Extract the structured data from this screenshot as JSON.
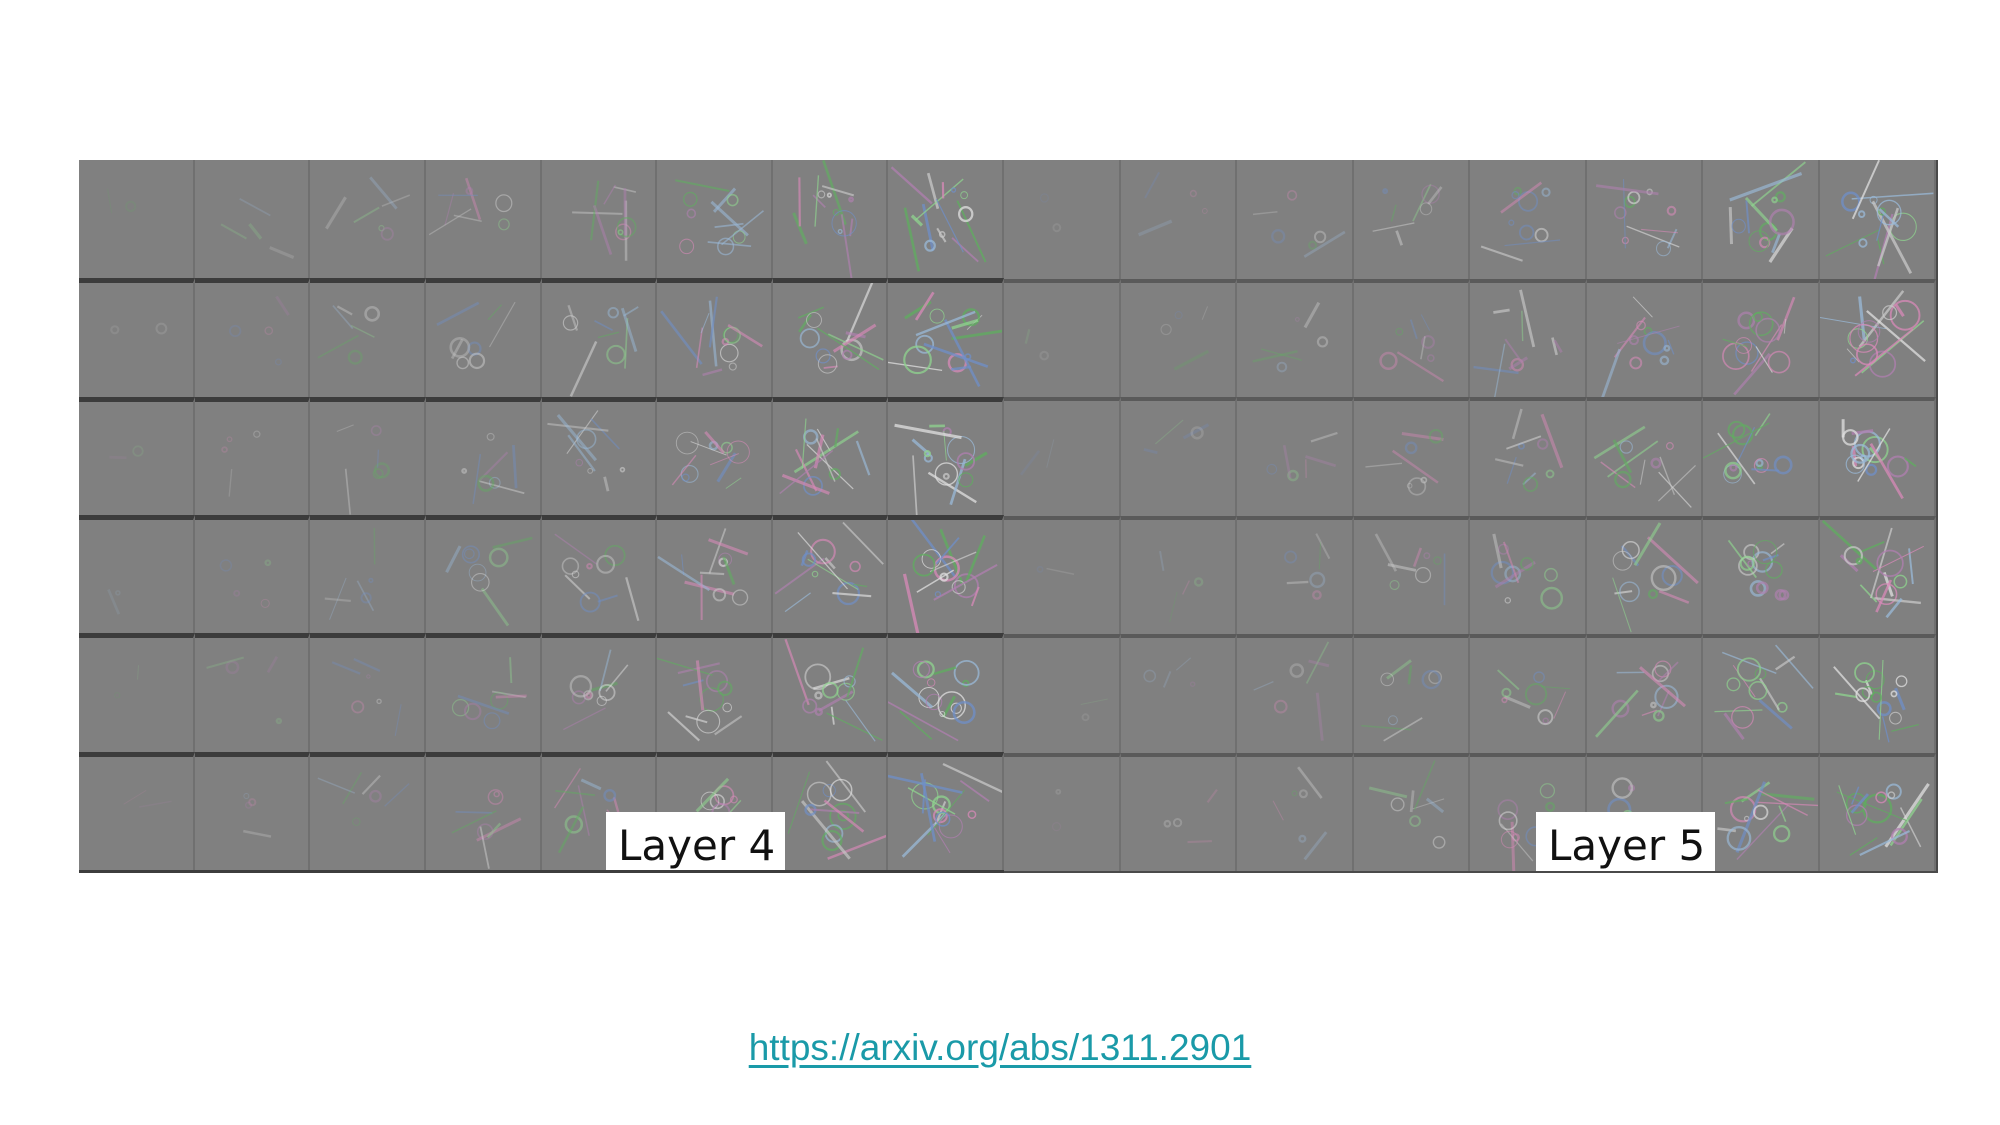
{
  "panels": [
    {
      "label": "Layer 4"
    },
    {
      "label": "Layer 5"
    }
  ],
  "source": {
    "url_text": "https://arxiv.org/abs/1311.2901"
  },
  "colors": {
    "background": "#ffffff",
    "figure_gray": "#808080",
    "link": "#1a9aa8"
  },
  "grid": {
    "rows": 6,
    "columns": 8
  }
}
